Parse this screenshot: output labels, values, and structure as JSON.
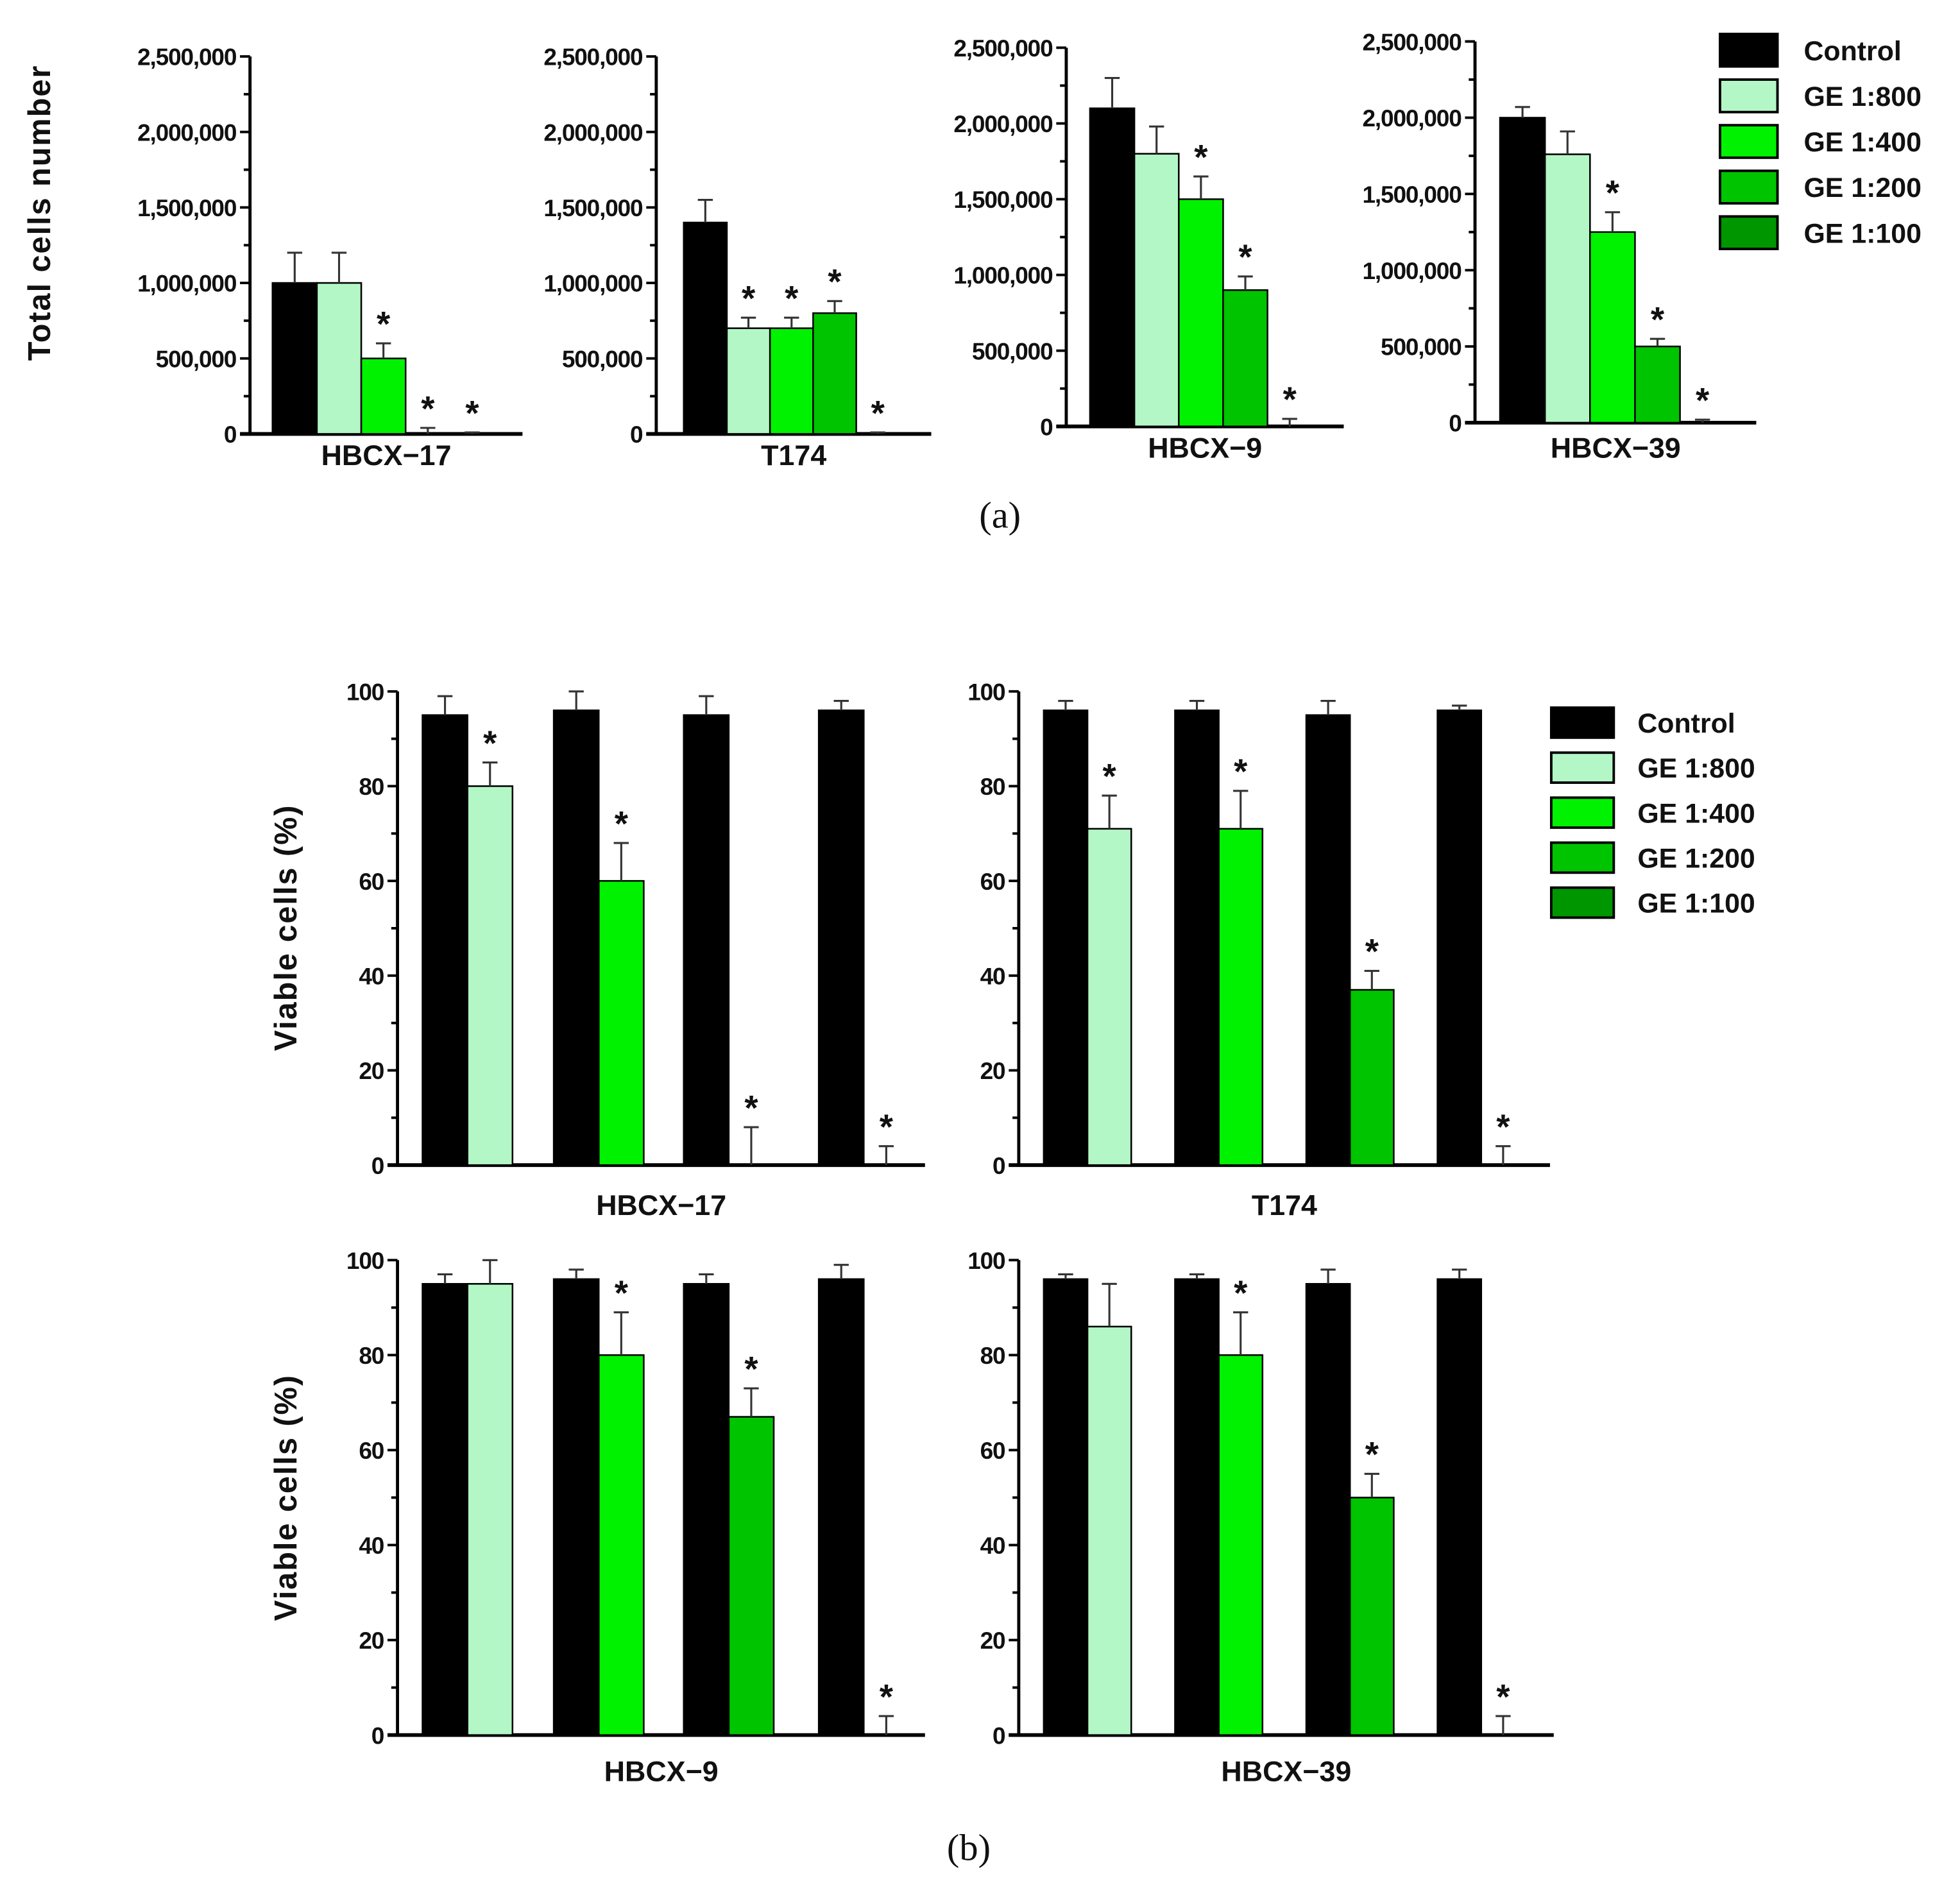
{
  "colors": {
    "Control": "#000000",
    "GE 1:800": "#b4f7c6",
    "GE 1:400": "#00f200",
    "GE 1:200": "#00c400",
    "GE 1:100": "#009600"
  },
  "chart_data": [
    {
      "panel": "(a)",
      "type": "bar",
      "ylabel": "Total cells number",
      "ylim": [
        0,
        2500000
      ],
      "tick_labels": [
        "0",
        "500,000",
        "1,000,000",
        "1,500,000",
        "2,000,000",
        "2,500,000"
      ],
      "legend": [
        "Control",
        "GE 1:800",
        "GE 1:400",
        "GE 1:200",
        "GE 1:100"
      ],
      "legend_position": "top-right",
      "subplots": [
        {
          "title": "HBCX−17",
          "series": [
            "Control",
            "GE 1:800",
            "GE 1:400",
            "GE 1:200",
            "GE 1:100"
          ],
          "values": [
            1000000,
            1000000,
            500000,
            0,
            0
          ],
          "errors": [
            200000,
            200000,
            100000,
            40000,
            10000
          ],
          "significant": [
            false,
            false,
            true,
            true,
            true
          ]
        },
        {
          "title": "T174",
          "series": [
            "Control",
            "GE 1:800",
            "GE 1:400",
            "GE 1:200",
            "GE 1:100"
          ],
          "values": [
            1400000,
            700000,
            700000,
            800000,
            0
          ],
          "errors": [
            150000,
            70000,
            70000,
            80000,
            10000
          ],
          "significant": [
            false,
            true,
            true,
            true,
            true
          ]
        },
        {
          "title": "HBCX−9",
          "series": [
            "Control",
            "GE 1:800",
            "GE 1:400",
            "GE 1:200",
            "GE 1:100"
          ],
          "values": [
            2100000,
            1800000,
            1500000,
            900000,
            0
          ],
          "errors": [
            200000,
            180000,
            150000,
            90000,
            50000
          ],
          "significant": [
            false,
            false,
            true,
            true,
            true
          ]
        },
        {
          "title": "HBCX−39",
          "series": [
            "Control",
            "GE 1:800",
            "GE 1:400",
            "GE 1:200",
            "GE 1:100"
          ],
          "values": [
            2000000,
            1760000,
            1250000,
            500000,
            0
          ],
          "errors": [
            70000,
            150000,
            130000,
            50000,
            20000
          ],
          "significant": [
            false,
            false,
            true,
            true,
            true
          ]
        }
      ]
    },
    {
      "panel": "(b)",
      "type": "bar",
      "ylabel": "Viable cells (%)",
      "ylim": [
        0,
        100
      ],
      "tick_labels": [
        "0",
        "20",
        "40",
        "60",
        "80",
        "100"
      ],
      "legend": [
        "Control",
        "GE 1:800",
        "GE 1:400",
        "GE 1:200",
        "GE 1:100"
      ],
      "legend_position": "top-right",
      "subplots": [
        {
          "title": "HBCX−17",
          "series": [
            "Control",
            "GE 1:800",
            "Control",
            "GE 1:400",
            "Control",
            "GE 1:200",
            "Control",
            "GE 1:100"
          ],
          "values": [
            95,
            80,
            96,
            60,
            95,
            0,
            96,
            0
          ],
          "errors": [
            4,
            5,
            4,
            8,
            4,
            8,
            2,
            4
          ],
          "significant": [
            false,
            true,
            false,
            true,
            false,
            true,
            false,
            true
          ]
        },
        {
          "title": "T174",
          "series": [
            "Control",
            "GE 1:800",
            "Control",
            "GE 1:400",
            "Control",
            "GE 1:200",
            "Control",
            "GE 1:100"
          ],
          "values": [
            96,
            71,
            96,
            71,
            95,
            37,
            96,
            0
          ],
          "errors": [
            2,
            7,
            2,
            8,
            3,
            4,
            1,
            4
          ],
          "significant": [
            false,
            true,
            false,
            true,
            false,
            true,
            false,
            true
          ]
        },
        {
          "title": "HBCX−9",
          "series": [
            "Control",
            "GE 1:800",
            "Control",
            "GE 1:400",
            "Control",
            "GE 1:200",
            "Control",
            "GE 1:100"
          ],
          "values": [
            95,
            95,
            96,
            80,
            95,
            67,
            96,
            0
          ],
          "errors": [
            2,
            5,
            2,
            9,
            2,
            6,
            3,
            4
          ],
          "significant": [
            false,
            false,
            false,
            true,
            false,
            true,
            false,
            true
          ]
        },
        {
          "title": "HBCX−39",
          "series": [
            "Control",
            "GE 1:800",
            "Control",
            "GE 1:400",
            "Control",
            "GE 1:200",
            "Control",
            "GE 1:100"
          ],
          "values": [
            96,
            86,
            96,
            80,
            95,
            50,
            96,
            0
          ],
          "errors": [
            1,
            9,
            1,
            9,
            3,
            5,
            2,
            4
          ],
          "significant": [
            false,
            false,
            false,
            true,
            false,
            true,
            false,
            true
          ]
        }
      ]
    }
  ],
  "star_symbol": "*"
}
